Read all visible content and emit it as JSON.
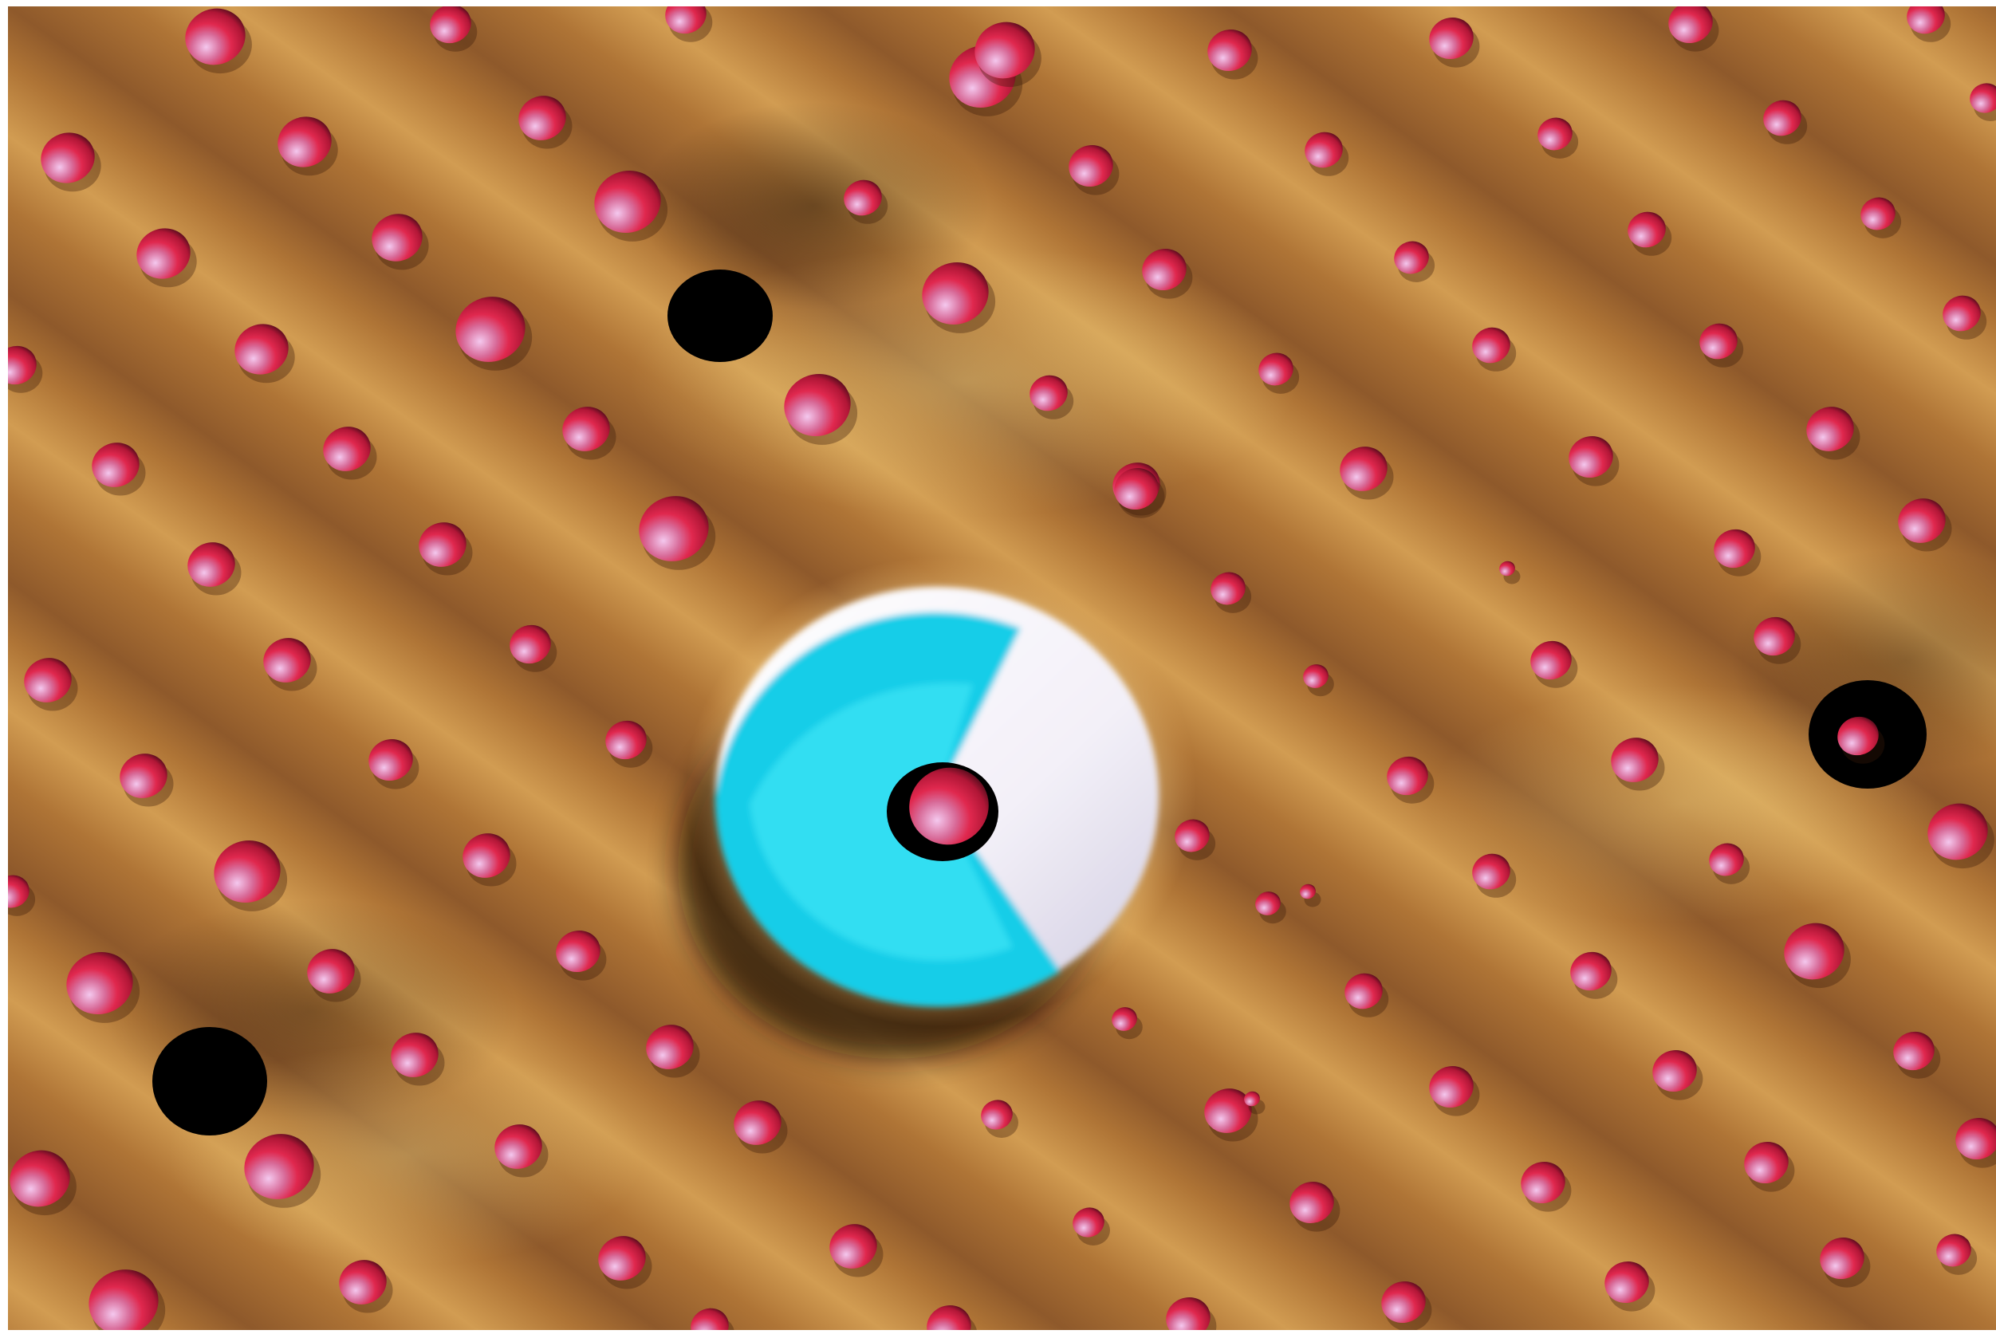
{
  "scene": {
    "subject": "rendered-atomic-surface",
    "colors": {
      "surface_base": "#b27a3f",
      "surface_light": "#e8b866",
      "surface_dark": "#7a4a22",
      "atom_light": "#f4c8ee",
      "atom_mid": "#e03055",
      "atom_dark": "#2a0810",
      "hole": "#000000",
      "defect_cyan": "#1ad4f0",
      "defect_white": "#ffffff",
      "defect_halo": "#f6f0b8"
    },
    "lattice_atom_count": 160,
    "vacancy_count": 3,
    "defect_count": 1
  }
}
